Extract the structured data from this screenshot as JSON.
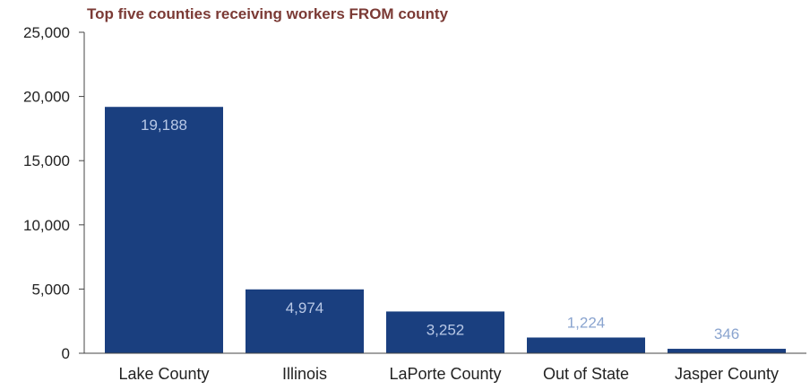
{
  "chart_data": {
    "type": "bar",
    "title": "Top five counties receiving workers FROM county",
    "xlabel": "",
    "ylabel": "",
    "categories": [
      "Lake County",
      "Illinois",
      "LaPorte County",
      "Out of State",
      "Jasper County"
    ],
    "values": [
      19188,
      4974,
      3252,
      1224,
      346
    ],
    "value_labels": [
      "19,188",
      "4,974",
      "3,252",
      "1,224",
      "346"
    ],
    "ylim": [
      0,
      25000
    ],
    "yticks": [
      0,
      5000,
      10000,
      15000,
      20000,
      25000
    ],
    "ytick_labels": [
      "0",
      "5,000",
      "10,000",
      "15,000",
      "20,000",
      "25,000"
    ],
    "grid": false,
    "legend": "none",
    "colors": {
      "bar": "#1a3f7f",
      "title": "#7b3a35",
      "label_inside": "#b8c8e6",
      "label_above": "#8aa4cf",
      "axis": "#444444"
    }
  }
}
